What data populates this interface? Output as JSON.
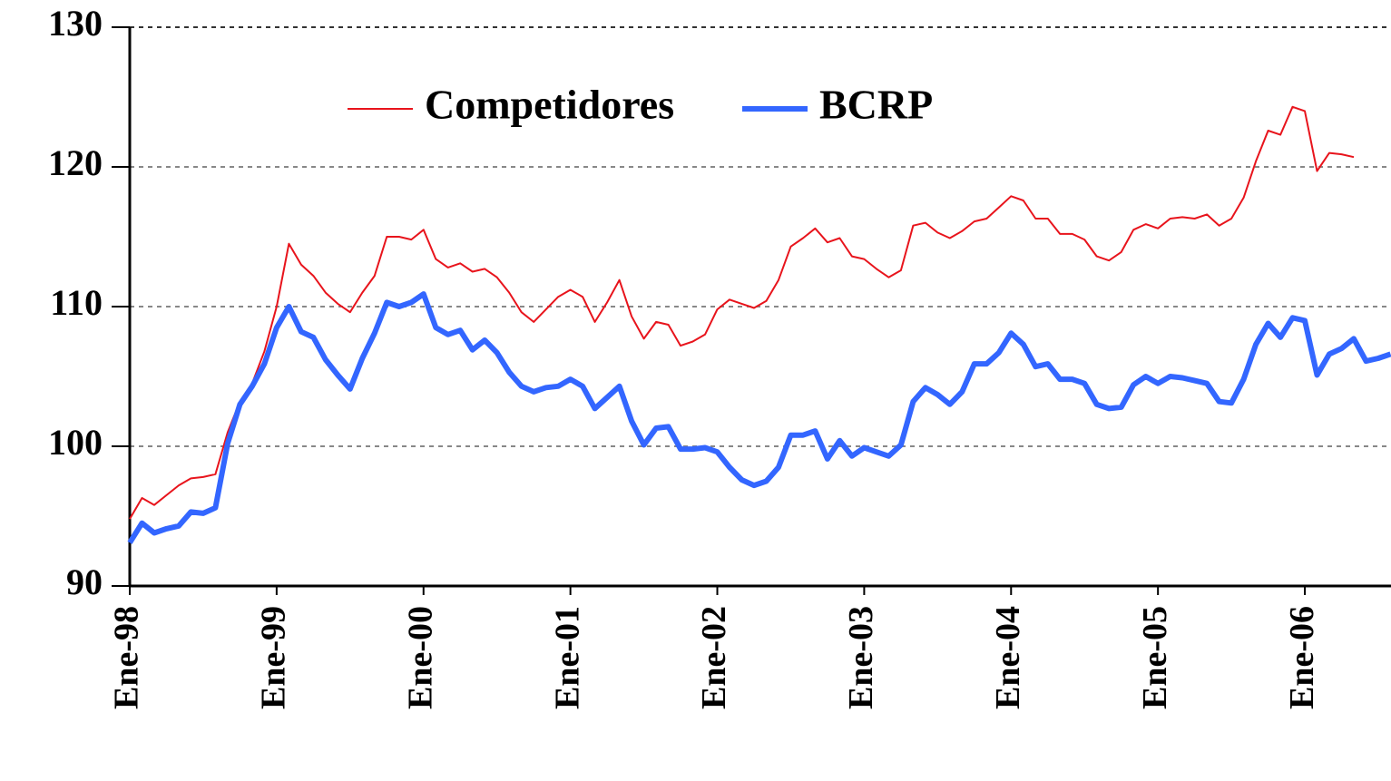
{
  "chart_data": {
    "type": "line",
    "categories": [
      "Ene-98",
      null,
      null,
      null,
      null,
      null,
      null,
      null,
      null,
      null,
      null,
      null,
      "Ene-99",
      null,
      null,
      null,
      null,
      null,
      null,
      null,
      null,
      null,
      null,
      null,
      "Ene-00",
      null,
      null,
      null,
      null,
      null,
      null,
      null,
      null,
      null,
      null,
      null,
      "Ene-01",
      null,
      null,
      null,
      null,
      null,
      null,
      null,
      null,
      null,
      null,
      null,
      "Ene-02",
      null,
      null,
      null,
      null,
      null,
      null,
      null,
      null,
      null,
      null,
      null,
      "Ene-03",
      null,
      null,
      null,
      null,
      null,
      null,
      null,
      null,
      null,
      null,
      null,
      "Ene-04",
      null,
      null,
      null,
      null,
      null,
      null,
      null,
      null,
      null,
      null,
      null,
      "Ene-05",
      null,
      null,
      null,
      null,
      null,
      null,
      null,
      null,
      null,
      null,
      null,
      "Ene-06",
      null,
      null,
      null,
      null,
      null,
      null,
      null
    ],
    "series": [
      {
        "name": "Competidores",
        "color": "#e8141c",
        "values": [
          94.8,
          96.3,
          95.8,
          96.5,
          97.2,
          97.7,
          97.8,
          98,
          101,
          103.2,
          104.5,
          106.8,
          110,
          114.5,
          113,
          112.2,
          111,
          110.2,
          109.6,
          111,
          112.2,
          115,
          115,
          114.8,
          115.5,
          113.4,
          112.8,
          113.1,
          112.5,
          112.7,
          112.1,
          111,
          109.6,
          108.9,
          109.8,
          110.7,
          111.2,
          110.7,
          108.9,
          110.3,
          111.9,
          109.3,
          107.7,
          108.9,
          108.7,
          107.2,
          107.5,
          108,
          109.8,
          110.5,
          110.2,
          109.9,
          110.4,
          111.9,
          114.3,
          114.9,
          115.6,
          114.6,
          114.9,
          113.6,
          113.4,
          112.7,
          112.1,
          112.6,
          115.8,
          116,
          115.3,
          114.9,
          115.4,
          116.1,
          116.3,
          117.1,
          117.9,
          117.6,
          116.3,
          116.3,
          115.2,
          115.2,
          114.8,
          113.6,
          113.3,
          113.9,
          115.5,
          115.9,
          115.6,
          116.3,
          116.4,
          116.3,
          116.6,
          115.8,
          116.3,
          117.8,
          120.4,
          122.6,
          122.3,
          124.3,
          124,
          119.7,
          121,
          120.9,
          120.7,
          null,
          null,
          null
        ]
      },
      {
        "name": "BCRP",
        "color": "#3366ff",
        "values": [
          93.1,
          94.5,
          93.8,
          94.1,
          94.3,
          95.3,
          95.2,
          95.6,
          100.2,
          103,
          104.3,
          105.9,
          108.5,
          110,
          108.2,
          107.8,
          106.2,
          105.1,
          104.1,
          106.3,
          108.1,
          110.3,
          110,
          110.3,
          110.9,
          108.5,
          108,
          108.3,
          106.9,
          107.6,
          106.7,
          105.3,
          104.3,
          103.9,
          104.2,
          104.3,
          104.8,
          104.3,
          102.7,
          103.5,
          104.3,
          101.8,
          100.1,
          101.3,
          101.4,
          99.8,
          99.8,
          99.9,
          99.6,
          98.5,
          97.6,
          97.2,
          97.5,
          98.5,
          100.8,
          100.8,
          101.1,
          99.1,
          100.4,
          99.3,
          99.9,
          99.6,
          99.3,
          100.1,
          103.2,
          104.2,
          103.7,
          103,
          103.9,
          105.9,
          105.9,
          106.7,
          108.1,
          107.3,
          105.7,
          105.9,
          104.8,
          104.8,
          104.5,
          103,
          102.7,
          102.8,
          104.4,
          105,
          104.5,
          105,
          104.9,
          104.7,
          104.5,
          103.2,
          103.1,
          104.8,
          107.3,
          108.8,
          107.8,
          109.2,
          109,
          105.1,
          106.6,
          107,
          107.7,
          106.1,
          106.3,
          106.6
        ]
      }
    ],
    "ylim": [
      90,
      130
    ],
    "yticks": [
      90,
      100,
      110,
      120,
      130
    ],
    "grid": true
  }
}
